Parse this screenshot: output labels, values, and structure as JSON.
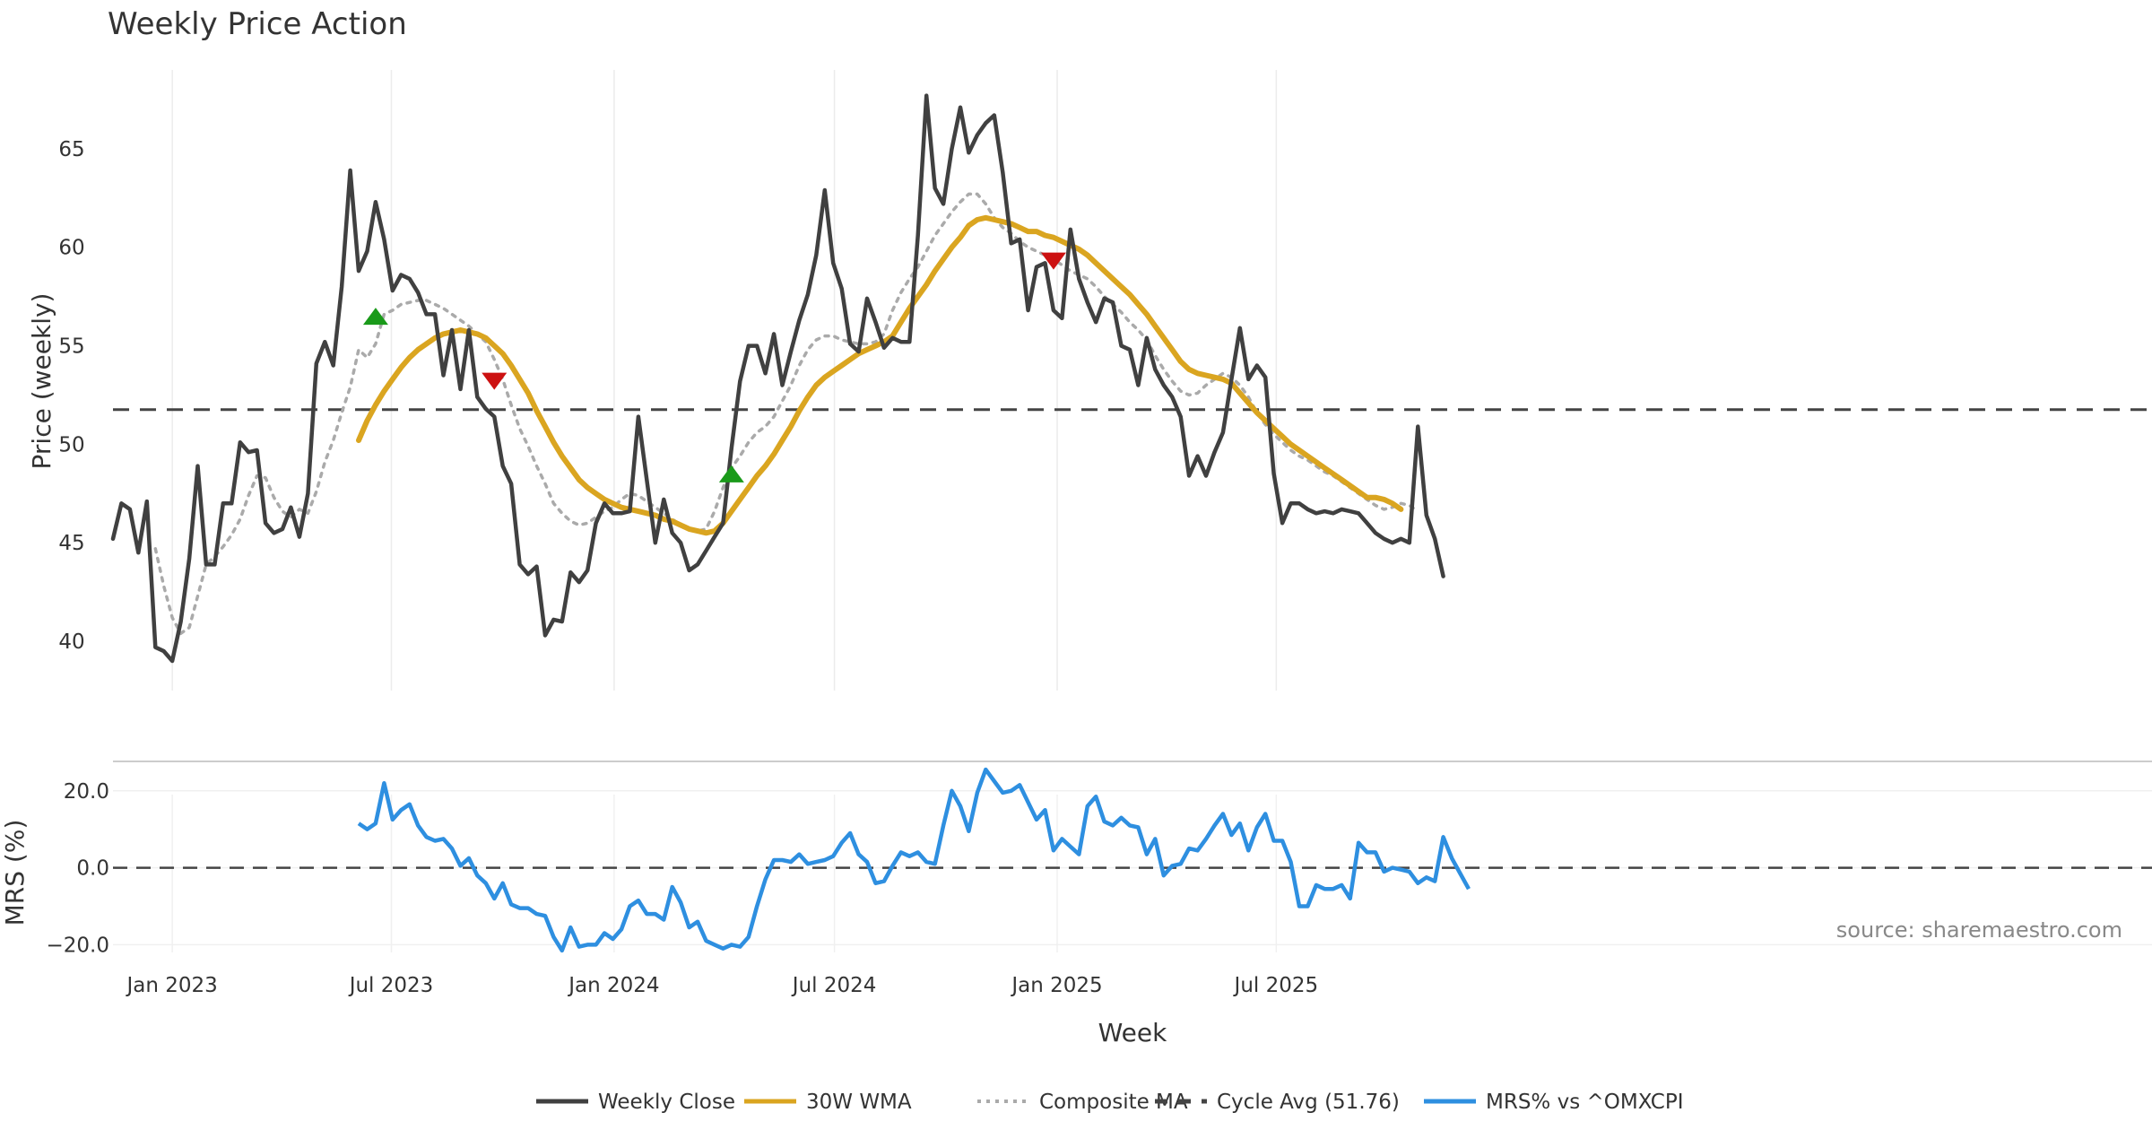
{
  "chart_data": [
    {
      "type": "line",
      "title": "Weekly Price Action",
      "xlabel": "",
      "ylabel": "Price (weekly)",
      "ylim": [
        37.5,
        69
      ],
      "yticks": [
        40,
        45,
        50,
        55,
        60,
        65
      ],
      "x_start": "2022-11-13",
      "xticks": [
        {
          "date": "2023-01-01",
          "label": "Jan 2023"
        },
        {
          "date": "2023-07-01",
          "label": "Jul 2023"
        },
        {
          "date": "2024-01-01",
          "label": "Jan 2024"
        },
        {
          "date": "2024-07-01",
          "label": "Jul 2024"
        },
        {
          "date": "2025-01-01",
          "label": "Jan 2025"
        },
        {
          "date": "2025-07-01",
          "label": "Jul 2025"
        }
      ],
      "grid": true,
      "series": [
        {
          "name": "Weekly Close",
          "color": "#404040",
          "style": "solid",
          "values": [
            45.2,
            47.0,
            46.7,
            44.5,
            47.1,
            39.7,
            39.5,
            39.0,
            41.0,
            44.2,
            48.9,
            43.9,
            43.9,
            47.0,
            47.0,
            50.1,
            49.6,
            49.7,
            46.0,
            45.5,
            45.7,
            46.8,
            45.3,
            47.5,
            54.1,
            55.2,
            54.0,
            58.0,
            63.9,
            58.8,
            59.8,
            62.3,
            60.4,
            57.8,
            58.6,
            58.4,
            57.7,
            56.6,
            56.6,
            53.5,
            55.8,
            52.8,
            55.8,
            52.4,
            51.8,
            51.4,
            48.9,
            48.0,
            43.9,
            43.4,
            43.8,
            40.3,
            41.1,
            41.0,
            43.5,
            43.0,
            43.6,
            46.0,
            47.0,
            46.5,
            46.5,
            46.6,
            51.4,
            48.2,
            45.0,
            47.2,
            45.5,
            45.0,
            43.6,
            43.9,
            44.6,
            45.3,
            46.0,
            49.8,
            53.2,
            55.0,
            55.0,
            53.6,
            55.6,
            53.0,
            54.7,
            56.3,
            57.6,
            59.6,
            62.9,
            59.2,
            57.9,
            55.1,
            54.7,
            57.4,
            56.2,
            54.9,
            55.4,
            55.2,
            55.2,
            60.6,
            67.7,
            63.0,
            62.2,
            65.0,
            67.1,
            64.8,
            65.7,
            66.3,
            66.7,
            63.8,
            60.2,
            60.4,
            56.8,
            59.0,
            59.2,
            56.8,
            56.4,
            60.9,
            58.4,
            57.2,
            56.2,
            57.4,
            57.2,
            55.0,
            54.8,
            53.0,
            55.4,
            53.8,
            53.0,
            52.4,
            51.4,
            48.4,
            49.4,
            48.4,
            49.6,
            50.6,
            53.3,
            55.9,
            53.3,
            54.0,
            53.4,
            48.5,
            46.0,
            47.0,
            47.0,
            46.7,
            46.5,
            46.6,
            46.5,
            46.7,
            46.6,
            46.5,
            46.0,
            45.5,
            45.2,
            45.0,
            45.2,
            45.0,
            50.9,
            46.4,
            45.2,
            43.3
          ]
        },
        {
          "name": "30W WMA",
          "color": "#DAA520",
          "style": "solid",
          "start_index": 29,
          "values": [
            50.2,
            51.2,
            52.0,
            52.7,
            53.3,
            53.9,
            54.4,
            54.8,
            55.1,
            55.4,
            55.6,
            55.7,
            55.8,
            55.7,
            55.6,
            55.4,
            55.0,
            54.6,
            54.0,
            53.3,
            52.6,
            51.7,
            50.9,
            50.1,
            49.4,
            48.8,
            48.2,
            47.8,
            47.5,
            47.2,
            47.0,
            46.8,
            46.7,
            46.6,
            46.5,
            46.4,
            46.2,
            46.1,
            45.9,
            45.7,
            45.6,
            45.5,
            45.6,
            46.0,
            46.6,
            47.2,
            47.8,
            48.4,
            48.9,
            49.5,
            50.2,
            50.9,
            51.7,
            52.4,
            53.0,
            53.4,
            53.7,
            54.0,
            54.3,
            54.6,
            54.8,
            55.0,
            55.2,
            55.5,
            56.2,
            56.9,
            57.5,
            58.1,
            58.8,
            59.4,
            60.0,
            60.5,
            61.1,
            61.4,
            61.5,
            61.4,
            61.3,
            61.2,
            61.0,
            60.8,
            60.8,
            60.6,
            60.5,
            60.3,
            60.1,
            59.9,
            59.6,
            59.2,
            58.8,
            58.4,
            58.0,
            57.6,
            57.1,
            56.6,
            56.0,
            55.4,
            54.8,
            54.2,
            53.8,
            53.6,
            53.5,
            53.4,
            53.3,
            53.1,
            52.6,
            52.1,
            51.6,
            51.2,
            50.8,
            50.4,
            50.0,
            49.7,
            49.4,
            49.1,
            48.8,
            48.5,
            48.2,
            47.9,
            47.6,
            47.3,
            47.3,
            47.2,
            47.0,
            46.7
          ]
        },
        {
          "name": "Composite MA",
          "color": "#aaaaaa",
          "style": "dotted",
          "start_index": 5,
          "values": [
            44.7,
            42.8,
            41.2,
            40.4,
            40.7,
            42.3,
            43.9,
            44.3,
            44.8,
            45.4,
            46.2,
            47.4,
            48.4,
            48.3,
            47.3,
            46.6,
            46.3,
            46.7,
            46.5,
            47.6,
            49.1,
            50.2,
            51.6,
            52.9,
            54.8,
            54.4,
            55.1,
            56.6,
            56.8,
            57.1,
            57.2,
            57.3,
            57.3,
            57.1,
            56.9,
            56.6,
            56.3,
            56.0,
            55.6,
            55.2,
            54.3,
            53.3,
            52.0,
            50.8,
            49.9,
            48.9,
            48.0,
            47.0,
            46.5,
            46.1,
            45.9,
            46.0,
            46.3,
            46.6,
            46.8,
            47.2,
            47.5,
            47.4,
            47.1,
            46.8,
            46.5,
            46.2,
            45.9,
            45.7,
            45.6,
            45.7,
            46.6,
            47.8,
            48.8,
            49.4,
            50.1,
            50.6,
            50.9,
            51.4,
            52.2,
            53.0,
            54.0,
            54.8,
            55.3,
            55.5,
            55.5,
            55.3,
            55.2,
            55.1,
            55.1,
            55.2,
            55.6,
            56.8,
            57.7,
            58.4,
            59.0,
            59.8,
            60.6,
            61.2,
            61.8,
            62.3,
            62.7,
            62.7,
            62.2,
            61.5,
            61.0,
            60.7,
            60.3,
            60.0,
            59.8,
            59.6,
            59.4,
            59.1,
            58.8,
            58.6,
            58.4,
            58.0,
            57.5,
            57.1,
            56.7,
            56.2,
            55.8,
            55.3,
            54.5,
            53.8,
            53.2,
            52.7,
            52.5,
            52.6,
            53.0,
            53.3,
            53.6,
            53.4,
            53.0,
            52.4,
            51.6,
            51.0,
            50.5,
            50.1,
            49.7,
            49.4,
            49.2,
            48.9,
            48.6,
            48.4,
            48.1,
            47.8,
            47.5,
            47.2,
            46.9,
            46.7,
            46.8,
            47.0,
            46.9,
            46.6
          ]
        },
        {
          "name": "Cycle Avg (51.76)",
          "color": "#444444",
          "style": "dashed",
          "constant": 51.76
        }
      ],
      "markers": [
        {
          "type": "buy",
          "index": 31,
          "value": 56.5,
          "color": "#1a9a1a"
        },
        {
          "type": "sell",
          "index": 45,
          "value": 53.2,
          "color": "#cc1111"
        },
        {
          "type": "buy",
          "index": 73,
          "value": 48.5,
          "color": "#1a9a1a"
        },
        {
          "type": "sell",
          "index": 111,
          "value": 59.3,
          "color": "#cc1111"
        }
      ]
    },
    {
      "type": "line",
      "title": "",
      "xlabel": "Week",
      "ylabel": "MRS (%)",
      "ylim": [
        -22,
        26
      ],
      "yticks": [
        {
          "value": 20,
          "label": "20.0"
        },
        {
          "value": 0,
          "label": "0.0"
        },
        {
          "value": -20,
          "label": "−20.0"
        }
      ],
      "zero_line": true,
      "grid": true,
      "series": [
        {
          "name": "MRS% vs ^OMXCPI",
          "color": "#2e8fe0",
          "style": "solid",
          "start_index": 29,
          "values": [
            11.5,
            10.0,
            11.5,
            22.0,
            12.5,
            15.0,
            16.5,
            11.0,
            8.0,
            7.0,
            7.5,
            5.0,
            0.5,
            2.5,
            -2.0,
            -4.0,
            -8.0,
            -4.0,
            -9.5,
            -10.5,
            -10.5,
            -12.0,
            -12.5,
            -18.0,
            -21.5,
            -15.5,
            -20.5,
            -20.0,
            -20.0,
            -17.0,
            -18.5,
            -16.0,
            -10.0,
            -8.5,
            -12.0,
            -12.0,
            -13.5,
            -5.0,
            -9.0,
            -15.5,
            -14.0,
            -19.0,
            -20.0,
            -21.0,
            -20.0,
            -20.5,
            -18.0,
            -10.0,
            -3.0,
            2.0,
            2.0,
            1.5,
            3.5,
            1.0,
            1.5,
            2.0,
            3.0,
            6.5,
            9.0,
            3.5,
            1.5,
            -4.0,
            -3.5,
            0.5,
            4.0,
            3.0,
            4.0,
            1.5,
            1.0,
            11.0,
            20.0,
            16.0,
            9.5,
            19.5,
            25.5,
            22.5,
            19.5,
            20.0,
            21.5,
            17.0,
            12.5,
            15.0,
            4.5,
            7.5,
            5.5,
            3.5,
            16.0,
            18.5,
            12.0,
            11.0,
            13.0,
            11.0,
            10.5,
            3.5,
            7.5,
            -2.0,
            0.5,
            1.0,
            5.0,
            4.5,
            7.5,
            11.0,
            14.0,
            8.5,
            11.5,
            4.5,
            10.5,
            14.0,
            7.0,
            7.0,
            1.5,
            -10.0,
            -10.0,
            -4.5,
            -5.5,
            -5.5,
            -4.5,
            -8.0,
            6.5,
            4.0,
            4.0,
            -1.0,
            0.0,
            -0.5,
            -1.0,
            -4.0,
            -2.5,
            -3.5,
            8.0,
            2.5,
            -1.5,
            -5.5
          ]
        }
      ],
      "annotation": "source: sharemaestro.com"
    }
  ],
  "legend": [
    {
      "label": "Weekly Close",
      "color": "#404040",
      "style": "solid"
    },
    {
      "label": "30W WMA",
      "color": "#DAA520",
      "style": "solid"
    },
    {
      "label": "Composite MA",
      "color": "#aaaaaa",
      "style": "dotted"
    },
    {
      "label": "Cycle Avg (51.76)",
      "color": "#444444",
      "style": "dashed"
    },
    {
      "label": "MRS% vs ^OMXCPI",
      "color": "#2e8fe0",
      "style": "solid"
    }
  ]
}
